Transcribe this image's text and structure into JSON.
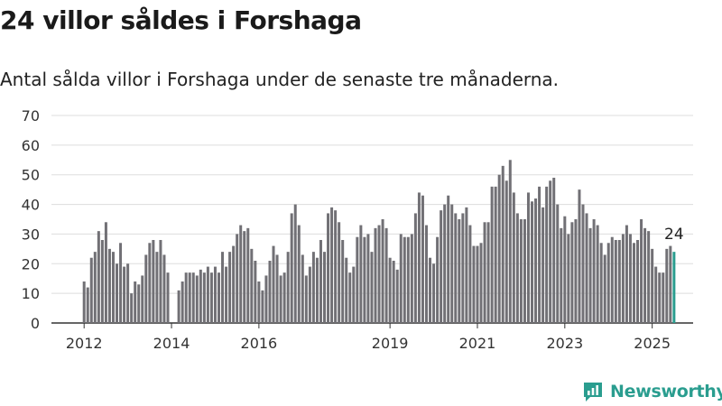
{
  "title": "24 villor såldes i Forshaga",
  "subtitle": "Antal sålda villor i Forshaga under de senaste tre månaderna.",
  "brand": "Newsworthy",
  "colors": {
    "bar": "#717075",
    "highlight": "#2a9d8f",
    "grid": "#dddddd",
    "brand": "#2a9d8f"
  },
  "icons": {
    "brand_logo": "newsworthy-logo-icon"
  },
  "chart_data": {
    "type": "bar",
    "ylim": [
      0,
      70
    ],
    "yticks": [
      0,
      10,
      20,
      30,
      40,
      50,
      60,
      70
    ],
    "x_start": "2012-01",
    "x_unit": "month",
    "xticks": [
      "2012",
      "2014",
      "2016",
      "2019",
      "2021",
      "2023",
      "2025"
    ],
    "xtick_months": [
      "2012-01",
      "2014-01",
      "2016-01",
      "2019-01",
      "2021-01",
      "2023-01",
      "2025-01"
    ],
    "values": [
      14,
      12,
      22,
      24,
      31,
      28,
      34,
      25,
      24,
      20,
      27,
      19,
      20,
      10,
      14,
      13,
      16,
      23,
      27,
      28,
      24,
      28,
      23,
      17,
      null,
      null,
      11,
      14,
      17,
      17,
      17,
      16,
      18,
      17,
      19,
      17,
      19,
      17,
      24,
      19,
      24,
      26,
      30,
      33,
      31,
      32,
      25,
      21,
      14,
      11,
      16,
      21,
      26,
      23,
      16,
      17,
      24,
      37,
      40,
      33,
      23,
      16,
      19,
      24,
      22,
      28,
      24,
      37,
      39,
      38,
      34,
      28,
      22,
      17,
      19,
      29,
      33,
      29,
      30,
      24,
      32,
      33,
      35,
      32,
      22,
      21,
      18,
      30,
      29,
      29,
      30,
      37,
      44,
      43,
      33,
      22,
      20,
      29,
      38,
      40,
      43,
      40,
      37,
      35,
      37,
      39,
      33,
      26,
      26,
      27,
      34,
      34,
      46,
      46,
      50,
      53,
      48,
      55,
      44,
      37,
      35,
      35,
      44,
      41,
      42,
      46,
      39,
      46,
      48,
      49,
      40,
      32,
      36,
      30,
      34,
      35,
      45,
      40,
      37,
      32,
      35,
      33,
      27,
      23,
      27,
      29,
      28,
      28,
      30,
      33,
      30,
      27,
      28,
      35,
      32,
      31,
      25,
      19,
      17,
      17,
      25,
      26,
      24
    ],
    "last_value_label": "24",
    "highlight_last": true
  }
}
